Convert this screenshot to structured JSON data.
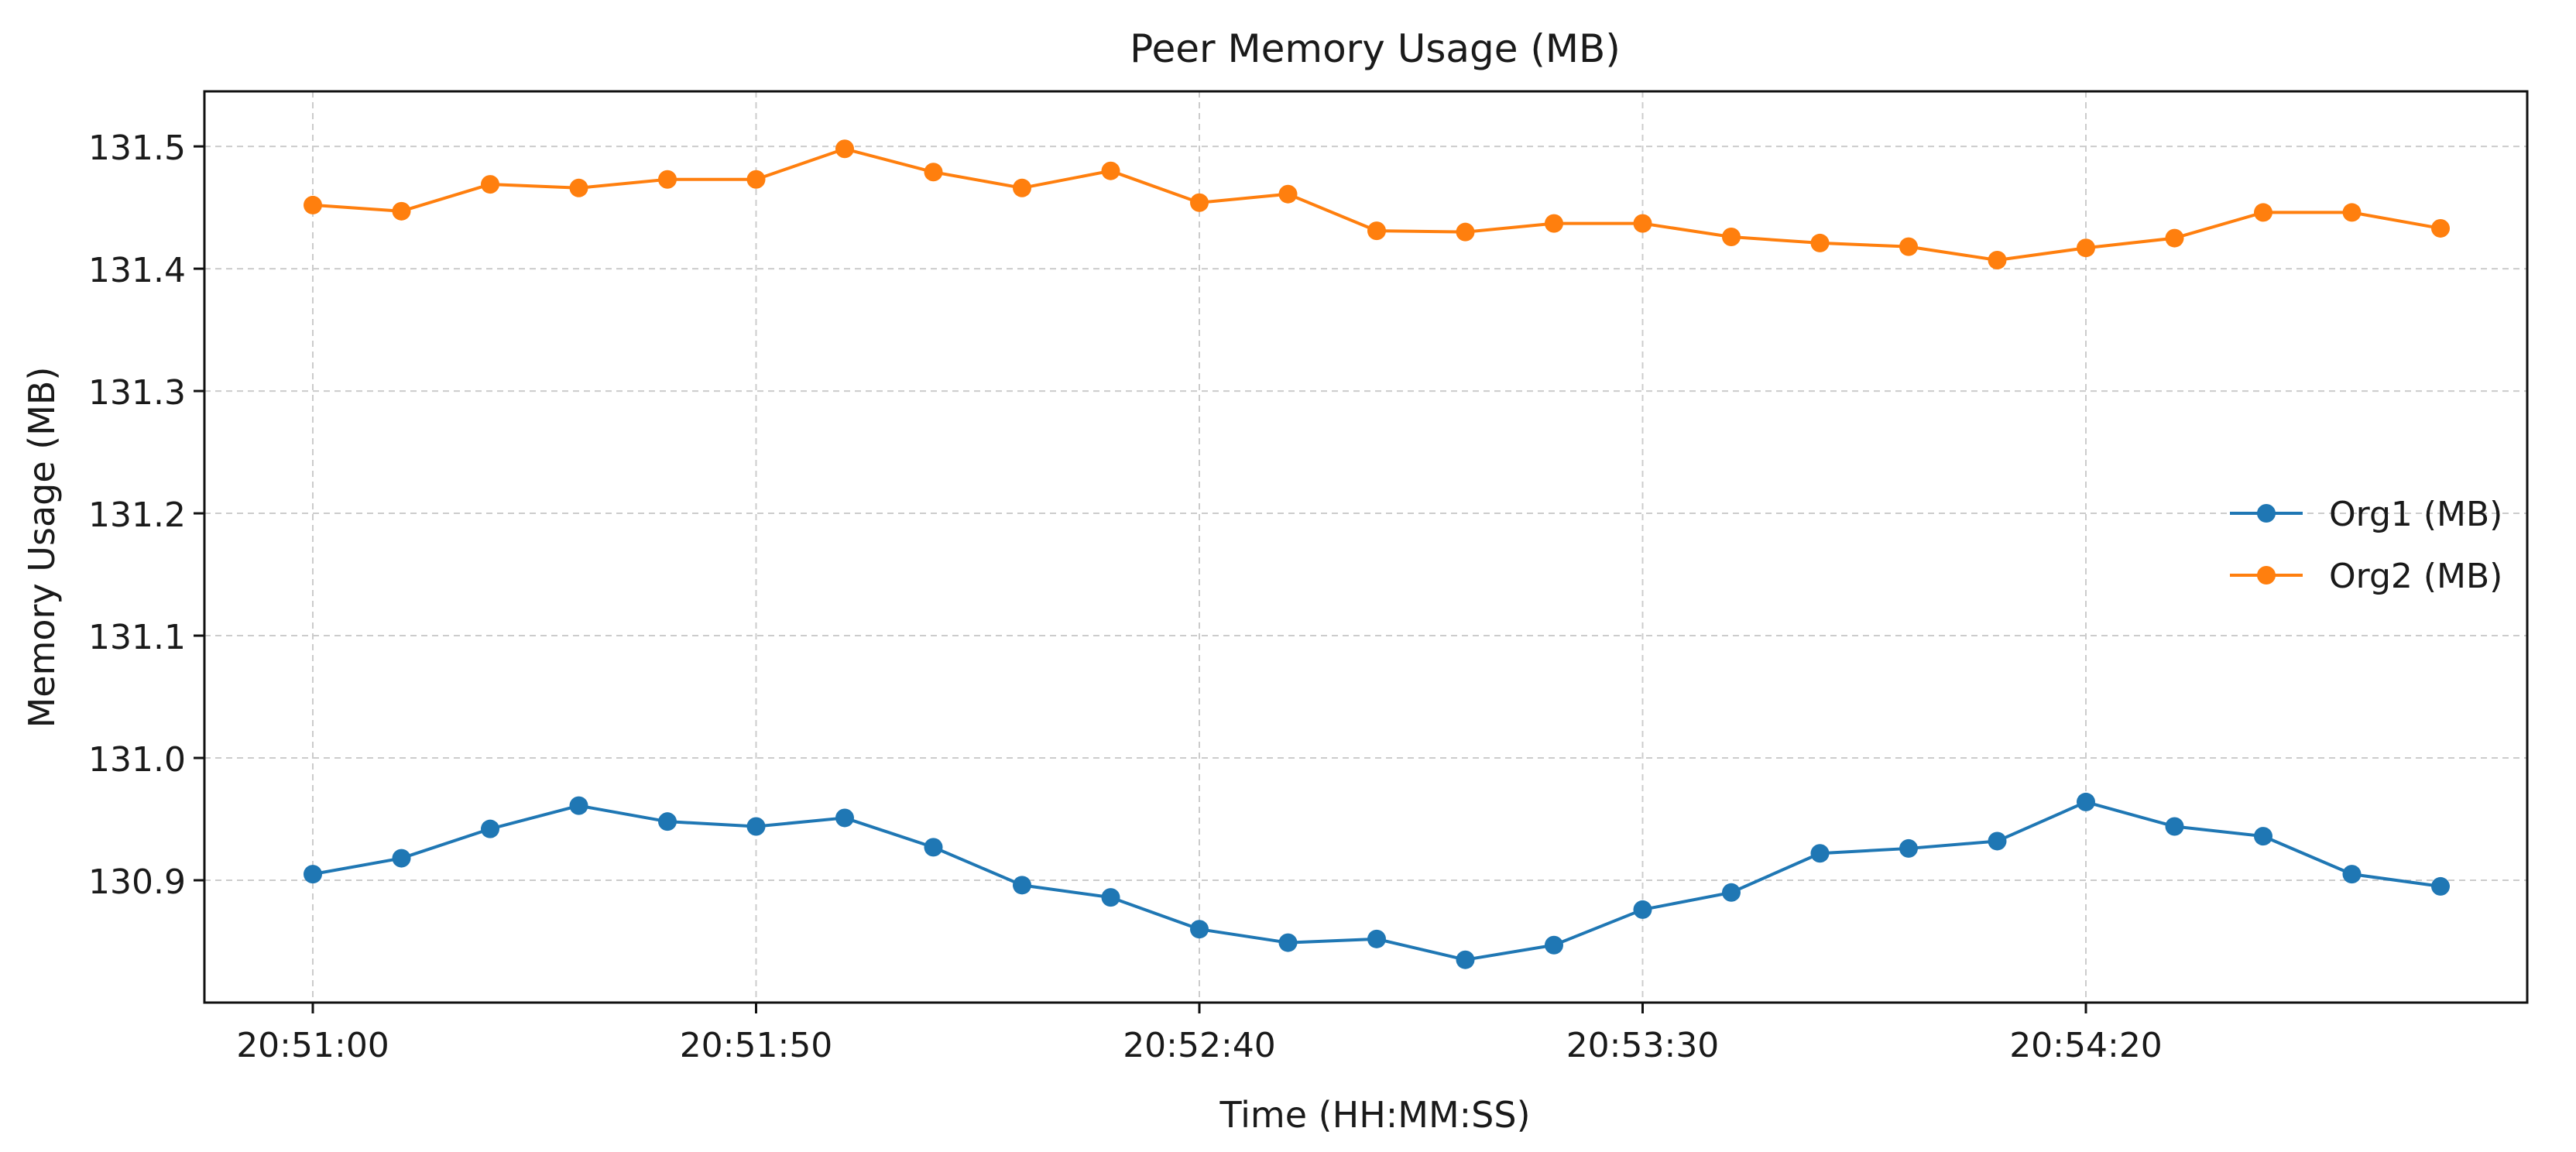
{
  "chart_data": {
    "type": "line",
    "title": "Peer Memory Usage (MB)",
    "xlabel": "Time (HH:MM:SS)",
    "ylabel": "Memory Usage (MB)",
    "x": [
      "20:51:00",
      "20:51:10",
      "20:51:20",
      "20:51:30",
      "20:51:40",
      "20:51:50",
      "20:52:00",
      "20:52:10",
      "20:52:20",
      "20:52:30",
      "20:52:40",
      "20:52:50",
      "20:53:00",
      "20:53:10",
      "20:53:20",
      "20:53:30",
      "20:53:40",
      "20:53:50",
      "20:54:00",
      "20:54:10",
      "20:54:20",
      "20:54:30",
      "20:54:40",
      "20:54:50",
      "20:55:00"
    ],
    "series": [
      {
        "name": "Org1 (MB)",
        "color": "#1f77b4",
        "values": [
          130.905,
          130.918,
          130.942,
          130.961,
          130.948,
          130.944,
          130.951,
          130.927,
          130.896,
          130.886,
          130.86,
          130.849,
          130.852,
          130.835,
          130.847,
          130.876,
          130.89,
          130.922,
          130.926,
          130.932,
          130.964,
          130.944,
          130.936,
          130.905,
          130.895
        ]
      },
      {
        "name": "Org2 (MB)",
        "color": "#ff7f0e",
        "values": [
          131.452,
          131.447,
          131.469,
          131.466,
          131.473,
          131.473,
          131.498,
          131.479,
          131.466,
          131.48,
          131.454,
          131.461,
          131.431,
          131.43,
          131.437,
          131.437,
          131.426,
          131.421,
          131.418,
          131.407,
          131.417,
          131.425,
          131.446,
          131.446,
          131.433
        ]
      }
    ],
    "xticks": [
      "20:51:00",
      "20:51:50",
      "20:52:40",
      "20:53:30",
      "20:54:20"
    ],
    "yticks": [
      "130.9",
      "131.0",
      "131.1",
      "131.2",
      "131.3",
      "131.4",
      "131.5"
    ],
    "ylim": [
      130.8,
      131.545
    ],
    "grid": true,
    "legend_position": "center-right"
  }
}
